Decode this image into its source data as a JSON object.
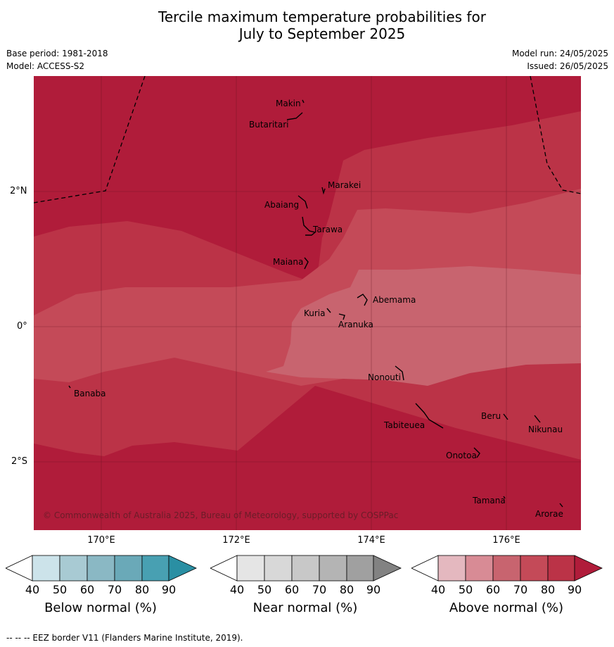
{
  "title": {
    "line1": "Tercile maximum temperature probabilities for",
    "line2": "July to September 2025"
  },
  "meta": {
    "base_period": "Base period: 1981-2018",
    "model": "Model: ACCESS-S2",
    "model_run": "Model run: 24/05/2025",
    "issued": "Issued: 26/05/2025"
  },
  "map": {
    "copyright": "© Commonwealth of Australia 2025, Bureau of Meteorology, supported by COSPPac",
    "lat_labels": [
      "2°N",
      "0°",
      "2°S"
    ],
    "lon_labels": [
      "170°E",
      "172°E",
      "174°E",
      "176°E"
    ],
    "islands": [
      "Makin",
      "Butaritari",
      "Marakei",
      "Abaiang",
      "Tarawa",
      "Maiana",
      "Abemama",
      "Kuria",
      "Aranuka",
      "Nonouti",
      "Banaba",
      "Tabiteuea",
      "Beru",
      "Nikunau",
      "Onotoa",
      "Tamana",
      "Arorae"
    ],
    "zone_colors": {
      "above_90": "#b01c3a",
      "above_80": "#bb3347",
      "above_70": "#c44a58",
      "above_60": "#c8646f",
      "above_50": "#d88b95",
      "above_40": "#e4b8bf"
    }
  },
  "colorbars": [
    {
      "title": "Below normal (%)",
      "ticks": [
        "40",
        "50",
        "60",
        "70",
        "80",
        "90"
      ],
      "colors": [
        "#cce3ea",
        "#a8cad3",
        "#8ab8c4",
        "#6aa9b8",
        "#48a0b2",
        "#2a8fa3"
      ]
    },
    {
      "title": "Near normal (%)",
      "ticks": [
        "40",
        "50",
        "60",
        "70",
        "80",
        "90"
      ],
      "colors": [
        "#e5e5e5",
        "#d8d8d8",
        "#c8c8c8",
        "#b4b4b4",
        "#a0a0a0",
        "#828282"
      ]
    },
    {
      "title": "Above normal (%)",
      "ticks": [
        "40",
        "50",
        "60",
        "70",
        "80",
        "90"
      ],
      "colors": [
        "#e4b8bf",
        "#d88b95",
        "#c8646f",
        "#c44a58",
        "#bb3347",
        "#b01c3a"
      ]
    }
  ],
  "footer": "--  --  -- EEZ border V11 (Flanders Marine Institute, 2019)."
}
